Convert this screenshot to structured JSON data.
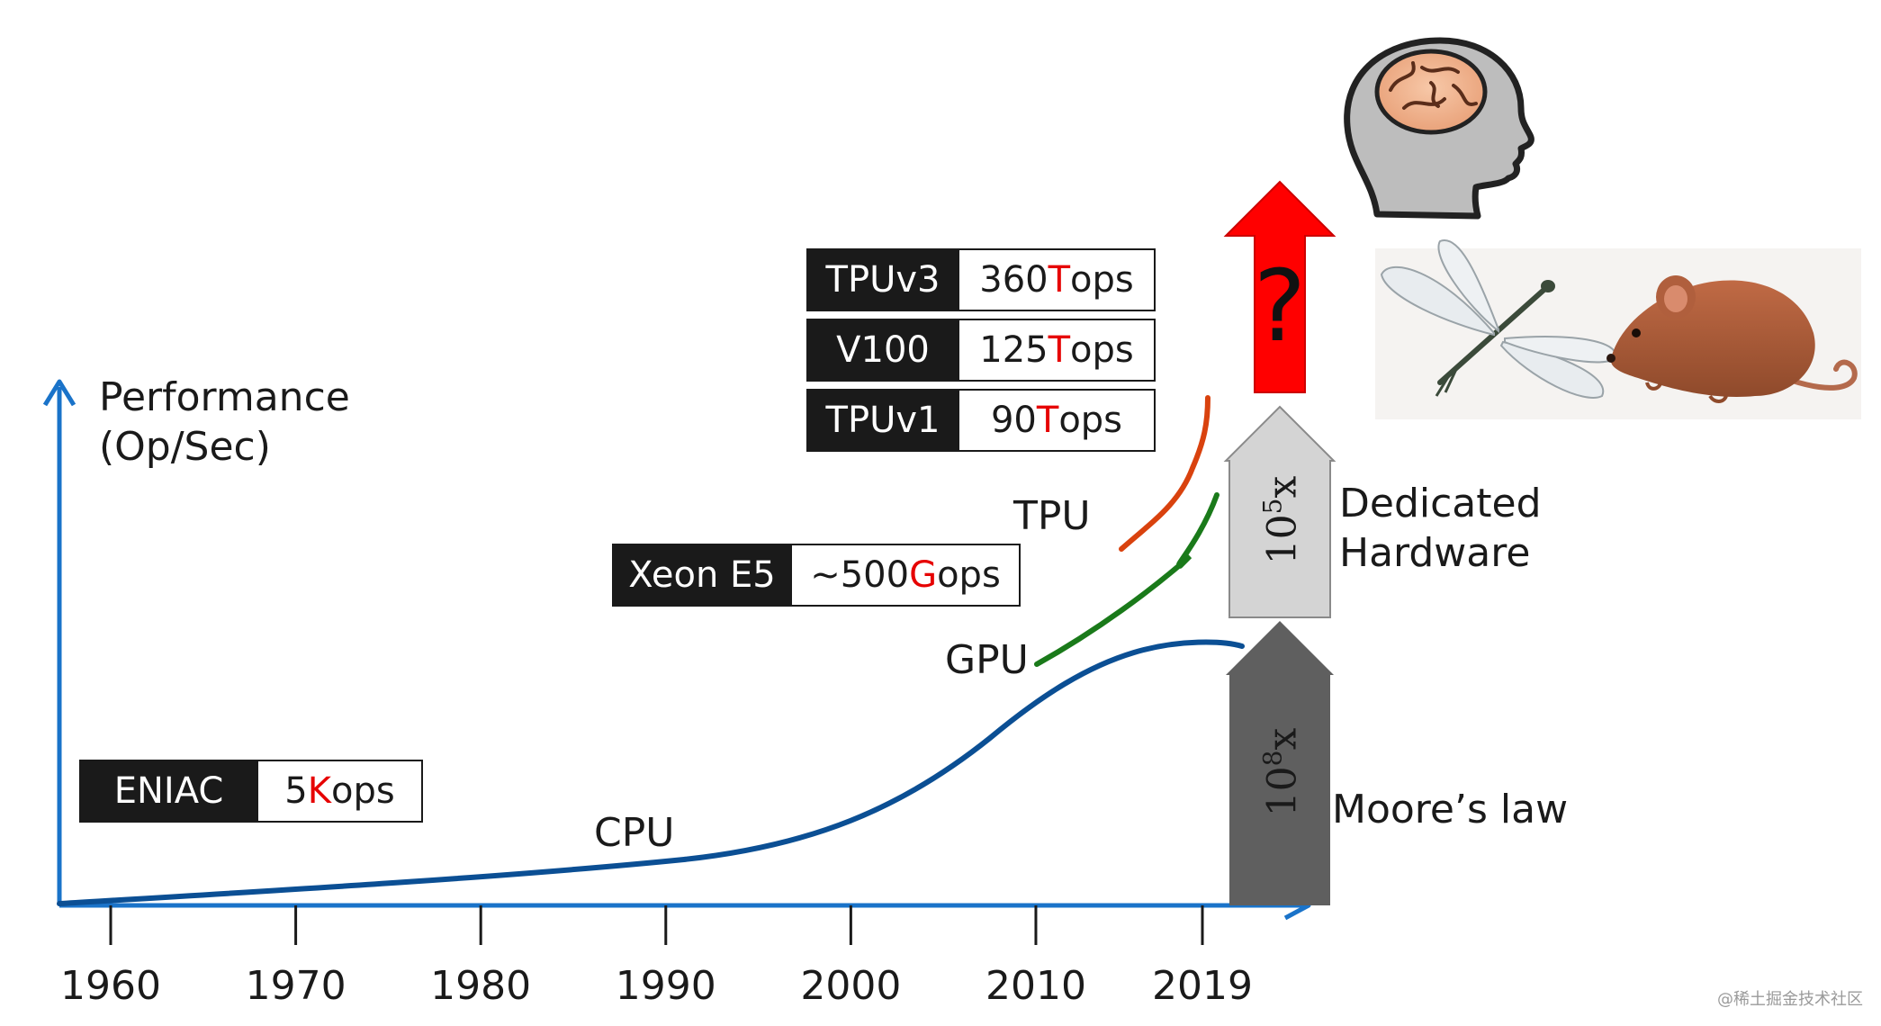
{
  "axis": {
    "y_label_line1": "Performance",
    "y_label_line2": "(Op/Sec)",
    "years": [
      "1960",
      "1970",
      "1980",
      "1990",
      "2000",
      "2010",
      "2019"
    ]
  },
  "curves": {
    "cpu": "CPU",
    "gpu": "GPU",
    "tpu": "TPU"
  },
  "chips": {
    "eniac": {
      "name": "ENIAC",
      "num": "5 ",
      "unit": "K",
      "rest": "ops"
    },
    "xeon": {
      "name": "Xeon E5",
      "num": "~500 ",
      "unit": "G",
      "rest": "ops"
    },
    "tpuv1": {
      "name": "TPUv1",
      "num": "90 ",
      "unit": "T",
      "rest": "ops"
    },
    "v100": {
      "name": "V100",
      "num": "125 ",
      "unit": "T",
      "rest": "ops"
    },
    "tpuv3": {
      "name": "TPUv3",
      "num": "360 ",
      "unit": "T",
      "rest": "ops"
    }
  },
  "arrows": {
    "moore": {
      "base": "10",
      "exp": "8",
      "suffix": "x",
      "label": "Moore’s law"
    },
    "dedicated": {
      "base": "10",
      "exp": "5",
      "suffix": "x",
      "label_line1": "Dedicated",
      "label_line2": "Hardware"
    },
    "unknown": {
      "symbol": "?"
    }
  },
  "colors": {
    "axis": "#1a73c9",
    "cpu": "#0b4f94",
    "gpu": "#1a7a1a",
    "tpu": "#d9420e",
    "arrow_moore": "#5f5f5f",
    "arrow_dedicated": "#d4d4d4",
    "arrow_unknown": "#ff0000",
    "unit_highlight": "#e60000"
  },
  "images": {
    "brain": "brain-head-icon",
    "dragonfly": "dragonfly-icon",
    "mouse": "mouse-icon"
  },
  "watermark": "@稀土掘金技术社区"
}
